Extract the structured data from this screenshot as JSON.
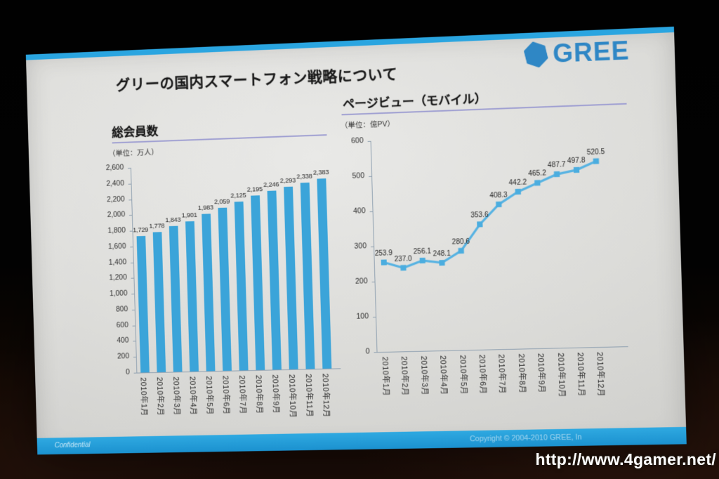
{
  "slide": {
    "title": "グリーの国内スマートフォン戦略について",
    "logo": {
      "text": "GREE",
      "icon": "hexagon"
    },
    "footer": {
      "confidential": "Confidential",
      "copyright": "Copyright © 2004-2010 GREE, In"
    }
  },
  "watermark": "http://www.4gamer.net/",
  "colors": {
    "stripe_blue": "#2aa5e0",
    "bar_blue": "#3ba4d9",
    "line_blue": "#58b3e2",
    "logo_blue": "#2f87c5",
    "underline_lavender": "#a0a0d2",
    "axis_gray": "#8fa0b0"
  },
  "chart_data": [
    {
      "type": "bar",
      "title": "総会員数",
      "unit_label": "（単位：万人）",
      "categories": [
        "2010年1月",
        "2010年2月",
        "2010年3月",
        "2010年4月",
        "2010年5月",
        "2010年6月",
        "2010年7月",
        "2010年8月",
        "2010年9月",
        "2010年10月",
        "2010年11月",
        "2010年12月"
      ],
      "values": [
        1729,
        1778,
        1843,
        1901,
        1983,
        2059,
        2125,
        2195,
        2246,
        2293,
        2338,
        2383
      ],
      "value_labels": [
        "1,729",
        "1,778",
        "1,843",
        "1,901",
        "1,983",
        "2,059",
        "2,125",
        "2,195",
        "2,246",
        "2,293",
        "2,338",
        "2,383"
      ],
      "xlabel": "",
      "ylabel": "万人",
      "ylim": [
        0,
        2600
      ],
      "ytick_step": 200,
      "grid": false,
      "legend": false
    },
    {
      "type": "line",
      "title": "ページビュー（モバイル）",
      "unit_label": "（単位：億PV）",
      "categories": [
        "2010年1月",
        "2010年2月",
        "2010年3月",
        "2010年4月",
        "2010年5月",
        "2010年6月",
        "2010年7月",
        "2010年8月",
        "2010年9月",
        "2010年10月",
        "2010年11月",
        "2010年12月"
      ],
      "values": [
        253.9,
        237.0,
        256.1,
        248.1,
        280.6,
        353.6,
        408.3,
        442.2,
        465.2,
        487.7,
        497.8,
        520.5
      ],
      "value_labels": [
        "253.9",
        "237.0",
        "256.1",
        "248.1",
        "280.6",
        "353.6",
        "408.3",
        "442.2",
        "465.2",
        "487.7",
        "497.8",
        "520.5"
      ],
      "xlabel": "",
      "ylabel": "億PV",
      "ylim": [
        0,
        600
      ],
      "ytick_step": 100,
      "grid": false,
      "legend": false,
      "marker": "square"
    }
  ]
}
